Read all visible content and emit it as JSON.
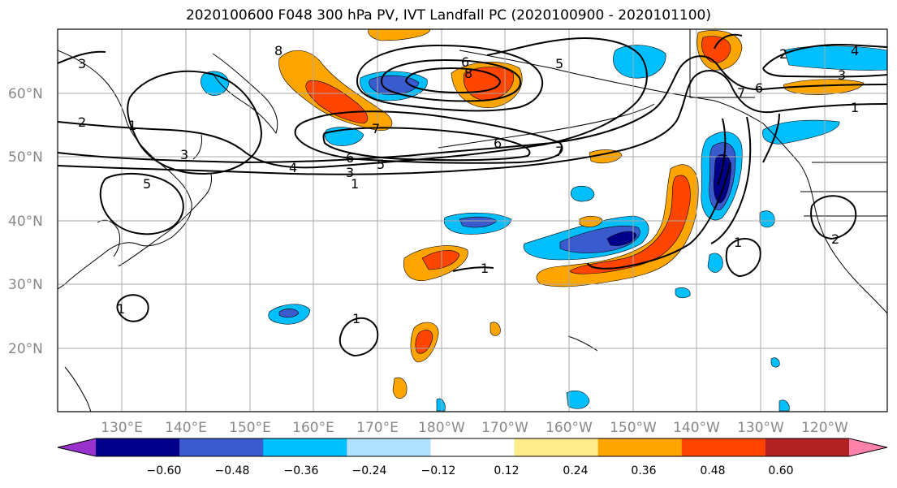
{
  "title": "2020100600 F048 300 hPa PV, IVT Landfall PC (2020100900 - 2020101100)",
  "lat_labels": [
    "20°N",
    "30°N",
    "40°N",
    "50°N",
    "60°N"
  ],
  "lon_labels": [
    "130°E",
    "140°E",
    "150°E",
    "160°E",
    "170°E",
    "180°W",
    "170°W",
    "160°W",
    "150°W",
    "140°W",
    "130°W",
    "120°W"
  ],
  "colorbar": {
    "ticks": [
      "−0.60",
      "−0.48",
      "−0.36",
      "−0.24",
      "−0.12",
      "0.12",
      "0.24",
      "0.36",
      "0.48",
      "0.60"
    ],
    "colors": [
      "#9932cc",
      "#00008b",
      "#3a5bcd",
      "#00bfff",
      "#b0e2ff",
      "#ffffff",
      "#ffec8b",
      "#ffa500",
      "#ff4500",
      "#b22222",
      "#ff82ab"
    ]
  },
  "pv_contour_labels": [
    "1",
    "1",
    "1",
    "1",
    "1",
    "1",
    "1",
    "2",
    "2",
    "2",
    "3",
    "3",
    "3",
    "3",
    "4",
    "4",
    "5",
    "5",
    "5",
    "6",
    "6",
    "6",
    "6",
    "7",
    "7",
    "7",
    "8",
    "8"
  ],
  "colors": {
    "grid": "#a8a8a8",
    "contour": "#000000",
    "coast": "#000000"
  }
}
